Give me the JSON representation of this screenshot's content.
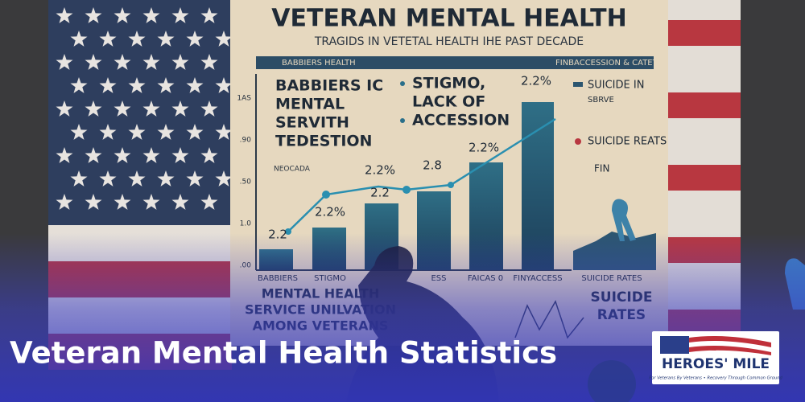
{
  "poster": {
    "title": "VETERAN MENTAL HEALTH",
    "subtitle": "TRAGIDS IN VETETAL HEALTH IHE PAST DECADE",
    "header_left": "BABBIERS HEALTH",
    "header_right": "FINBACCESSION & CATETS",
    "left_block": [
      "BABBIERS IC",
      "MENTAL",
      "SERVITH",
      "TEDESTION"
    ],
    "bullets": [
      "STIGMO,",
      "LACK OF",
      "ACCESSION"
    ],
    "axis_labels": [
      "1AS",
      ".90",
      ".50",
      "1.0",
      ".00"
    ],
    "chart_note": "NEOCADA",
    "bar_labels": [
      "2.2",
      "2.2%",
      "2.2",
      "2.2%",
      "2.8",
      "2.2%",
      "2.2%"
    ],
    "categories": [
      "BABBIERS",
      "STIGMO",
      "ESS",
      "FAICAS 0",
      "FINYACCESS",
      "SUICIDE RATES"
    ],
    "legend": [
      "SUICIDE IN",
      "SBRVE",
      "SUICIDE REATS",
      "FIN"
    ],
    "bottom_left": [
      "MENTAL HEALTH",
      "SERVICE UNILVATION",
      "AMONG VETERANS"
    ],
    "bottom_right": [
      "SUICIDE",
      "RATES"
    ]
  },
  "banner": {
    "title": "Veteran Mental Health Statistics"
  },
  "logo": {
    "name": "HEROES' MILE",
    "tagline": "For Veterans By Veterans • Recovery Through Common Ground"
  }
}
